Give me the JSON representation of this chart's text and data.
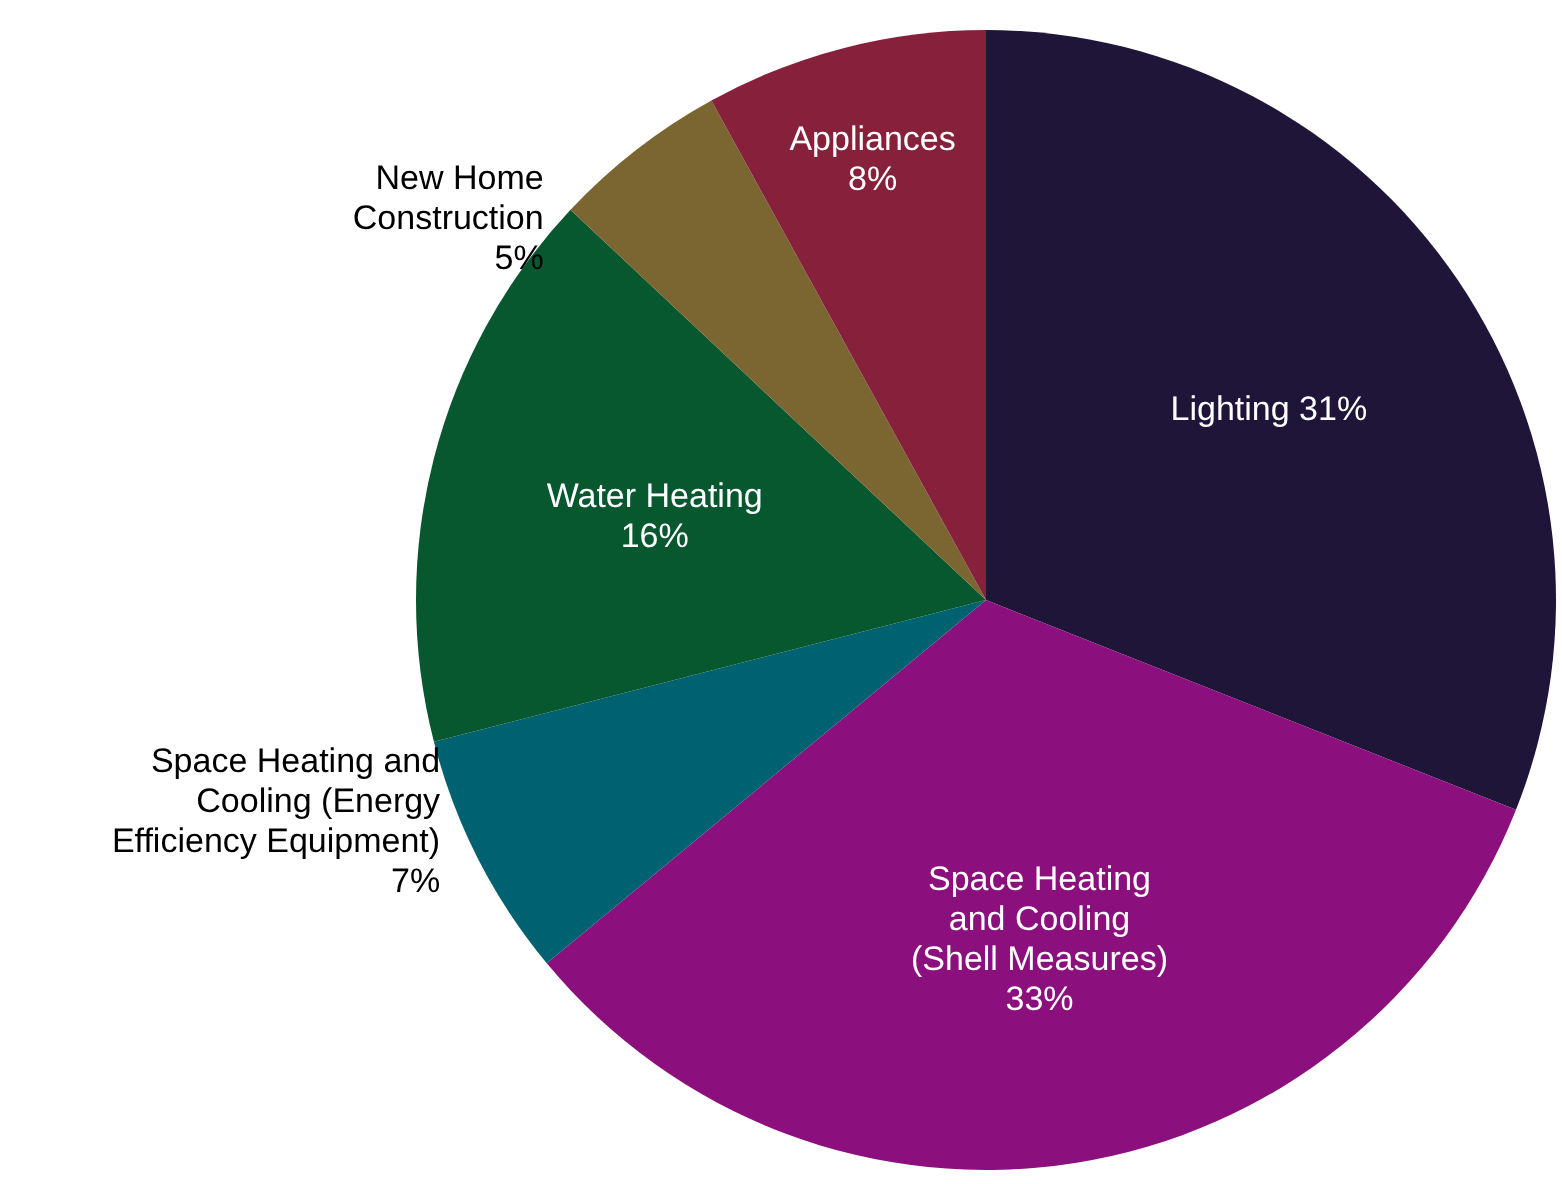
{
  "chart_data": {
    "type": "pie",
    "categories": [
      "Lighting",
      "Space Heating and Cooling (Shell Measures)",
      "Space Heating and Cooling (Energy Efficiency Equipment)",
      "Water Heating",
      "New Home Construction",
      "Appliances"
    ],
    "values": [
      31,
      33,
      7,
      16,
      5,
      8
    ],
    "value_labels": [
      "31%",
      "33%",
      "7%",
      "16%",
      "5%",
      "8%"
    ],
    "colors": [
      "#1e1538",
      "#8b0f7c",
      "#006170",
      "#07572f",
      "#7b6530",
      "#86203b"
    ]
  }
}
